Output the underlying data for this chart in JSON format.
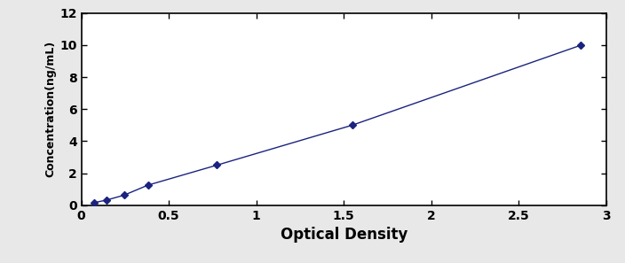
{
  "x_data": [
    0.072,
    0.143,
    0.245,
    0.381,
    0.775,
    1.549,
    2.856
  ],
  "y_data": [
    0.156,
    0.312,
    0.625,
    1.25,
    2.5,
    5.0,
    10.0
  ],
  "line_color": "#1a237e",
  "marker_color": "#1a237e",
  "marker_style": "D",
  "marker_size": 4.5,
  "line_width": 1.0,
  "line_style": "-",
  "xlabel": "Optical Density",
  "ylabel": "Concentration(ng/mL)",
  "xlim": [
    0,
    3
  ],
  "ylim": [
    0,
    12
  ],
  "xticks": [
    0,
    0.5,
    1,
    1.5,
    2,
    2.5,
    3
  ],
  "yticks": [
    0,
    2,
    4,
    6,
    8,
    10,
    12
  ],
  "xlabel_fontsize": 12,
  "ylabel_fontsize": 9,
  "tick_fontsize": 10,
  "ylabel_fontweight": "bold",
  "xlabel_fontweight": "bold",
  "background_color": "#ffffff",
  "outer_bg": "#e8e8e8",
  "border_color": "#000000"
}
